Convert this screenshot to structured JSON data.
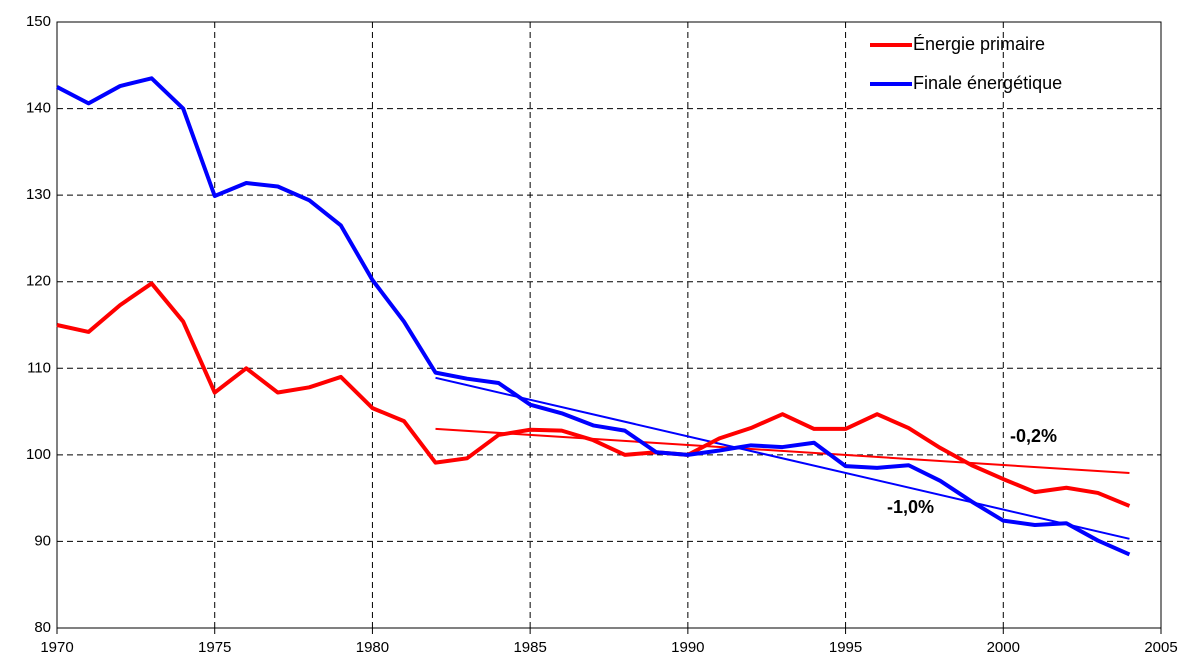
{
  "chart_data": {
    "type": "line",
    "x": [
      1970,
      1971,
      1972,
      1973,
      1974,
      1975,
      1976,
      1977,
      1978,
      1979,
      1980,
      1981,
      1982,
      1983,
      1984,
      1985,
      1986,
      1987,
      1988,
      1989,
      1990,
      1991,
      1992,
      1993,
      1994,
      1995,
      1996,
      1997,
      1998,
      1999,
      2000,
      2001,
      2002,
      2003,
      2004
    ],
    "series": [
      {
        "name": "Énergie primaire",
        "color": "#ff0000",
        "values": [
          115,
          114.2,
          117.3,
          119.8,
          115.4,
          107.2,
          110,
          107.2,
          107.8,
          109,
          105.4,
          103.9,
          99.1,
          99.6,
          102.3,
          102.9,
          102.8,
          101.7,
          100,
          100.3,
          100,
          101.9,
          103.1,
          104.7,
          103,
          103,
          104.7,
          103.1,
          100.8,
          98.8,
          97.2,
          95.7,
          96.2,
          95.6,
          94.1
        ]
      },
      {
        "name": "Finale énergétique",
        "color": "#0000ff",
        "values": [
          142.5,
          140.6,
          142.6,
          143.5,
          140,
          129.9,
          131.4,
          131,
          129.4,
          126.5,
          120.2,
          115.4,
          109.5,
          108.8,
          108.3,
          105.8,
          104.8,
          103.4,
          102.8,
          100.3,
          100,
          100.5,
          101.1,
          100.9,
          101.4,
          98.7,
          98.5,
          98.8,
          97,
          94.6,
          92.4,
          91.9,
          92.1,
          90.1,
          88.5
        ]
      }
    ],
    "trends": [
      {
        "color": "#ff0000",
        "x": [
          1982,
          2004
        ],
        "values": [
          103,
          97.9
        ]
      },
      {
        "color": "#0000ff",
        "x": [
          1982,
          2004
        ],
        "values": [
          108.9,
          90.3
        ]
      }
    ],
    "annotations": [
      "-0,2%",
      "-1,0%"
    ],
    "xlim": [
      1970,
      2005
    ],
    "xticks": [
      1970,
      1975,
      1980,
      1985,
      1990,
      1995,
      2000,
      2005
    ],
    "ylim": [
      80,
      150
    ],
    "yticks": [
      80,
      90,
      100,
      110,
      120,
      130,
      140,
      150
    ],
    "grid": true,
    "legend": "top-right"
  }
}
